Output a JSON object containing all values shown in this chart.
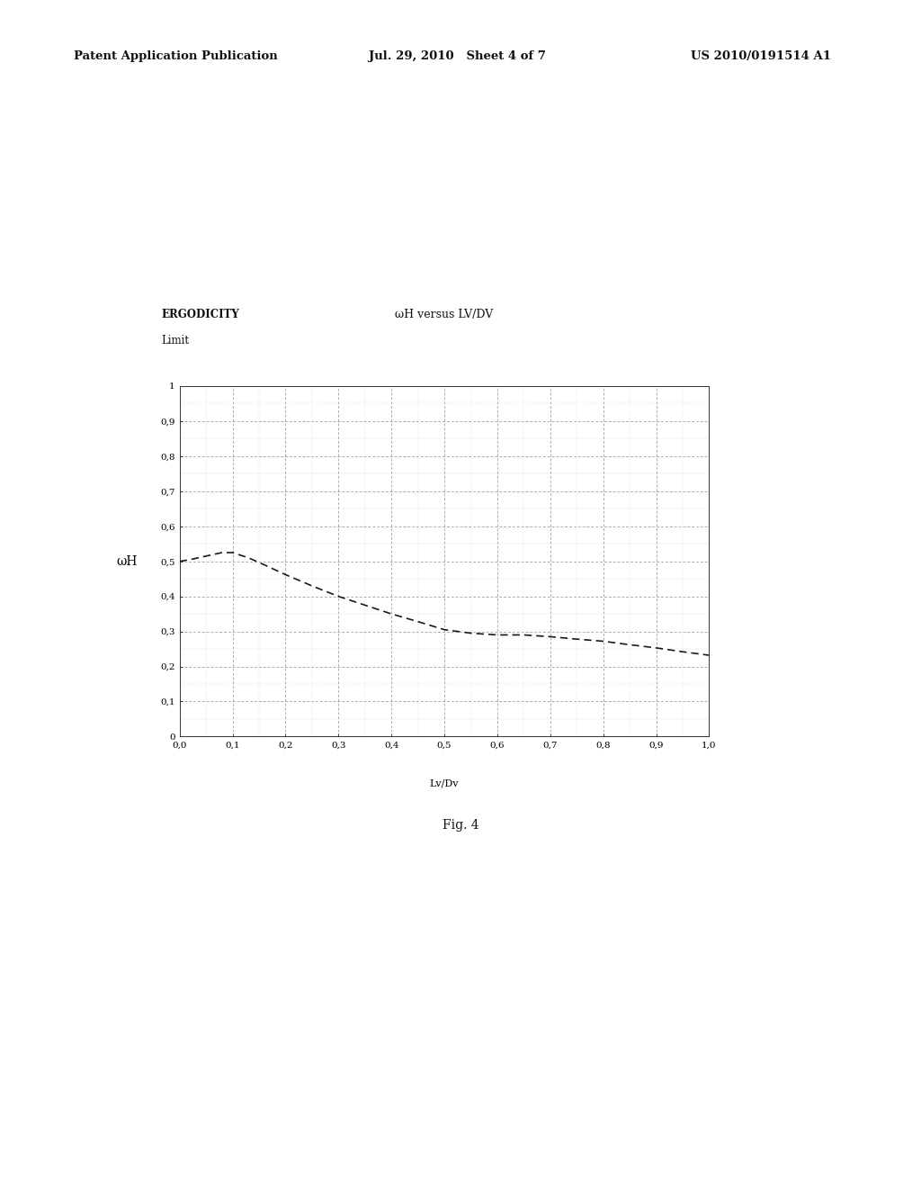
{
  "title": "ωH versus LV/DV",
  "ylabel_text": "ωH",
  "xlabel": "Lv/Dv",
  "ergodicity_line1": "ERGODICITY",
  "ergodicity_line2": "Limit",
  "fig_label": "Fig. 4",
  "header_left": "Patent Application Publication",
  "header_mid": "Jul. 29, 2010   Sheet 4 of 7",
  "header_right": "US 2010/0191514 A1",
  "xlim": [
    0.0,
    1.0
  ],
  "ylim": [
    0.0,
    1.0
  ],
  "xticks": [
    0.0,
    0.1,
    0.2,
    0.3,
    0.4,
    0.5,
    0.6,
    0.7,
    0.8,
    0.9,
    1.0
  ],
  "yticks": [
    0.0,
    0.1,
    0.2,
    0.3,
    0.4,
    0.5,
    0.6,
    0.7,
    0.8,
    0.9,
    1.0
  ],
  "xtick_labels": [
    "0,0",
    "0,1",
    "0,2",
    "0,3",
    "0,4",
    "0,5",
    "0,6",
    "0,7",
    "0,8",
    "0,9",
    "1,0"
  ],
  "ytick_labels": [
    "0",
    "0,1",
    "0,2",
    "0,3",
    "0,4",
    "0,5",
    "0,6",
    "0,7",
    "0,8",
    "0,9",
    "1"
  ],
  "curve_x": [
    0.0,
    0.02,
    0.05,
    0.08,
    0.1,
    0.13,
    0.16,
    0.2,
    0.25,
    0.3,
    0.35,
    0.4,
    0.45,
    0.5,
    0.55,
    0.6,
    0.65,
    0.7,
    0.75,
    0.8,
    0.85,
    0.9,
    0.95,
    1.0
  ],
  "curve_y": [
    0.5,
    0.505,
    0.515,
    0.525,
    0.525,
    0.51,
    0.49,
    0.462,
    0.43,
    0.4,
    0.375,
    0.35,
    0.328,
    0.305,
    0.295,
    0.29,
    0.29,
    0.285,
    0.278,
    0.272,
    0.262,
    0.253,
    0.242,
    0.232
  ],
  "curve_color": "#1a1a1a",
  "grid_major_color": "#888888",
  "grid_minor_color": "#bbbbbb",
  "background_color": "#ffffff",
  "page_bg": "#ffffff"
}
